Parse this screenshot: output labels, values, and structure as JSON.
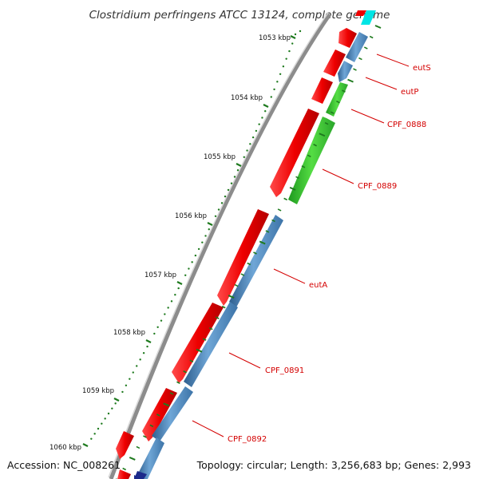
{
  "title": "Clostridium perfringens ATCC 13124, complete genome",
  "accession": "Accession: NC_008261",
  "topology": "Topology: circular; Length: 3,256,683 bp; Genes: 2,993",
  "colors": {
    "forward_gene": "#ee0000",
    "reverse_gene": "#4a86bf",
    "green_gene": "#33cc22",
    "cyan_gene": "#00e5e5",
    "navy_gene": "#1b2a8a",
    "backbone": "#8c8c8c",
    "tick": "#1e7a1e",
    "label": "#d40000"
  },
  "ticks": [
    {
      "label": "1053 kbp"
    },
    {
      "label": "1054 kbp"
    },
    {
      "label": "1055 kbp"
    },
    {
      "label": "1056 kbp"
    },
    {
      "label": "1057 kbp"
    },
    {
      "label": "1058 kbp"
    },
    {
      "label": "1059 kbp"
    },
    {
      "label": "1060 kbp"
    }
  ],
  "gene_labels": [
    {
      "name": "eutS"
    },
    {
      "name": "eutP"
    },
    {
      "name": "CPF_0888"
    },
    {
      "name": "CPF_0889"
    },
    {
      "name": "eutA"
    },
    {
      "name": "CPF_0891"
    },
    {
      "name": "CPF_0892"
    }
  ]
}
